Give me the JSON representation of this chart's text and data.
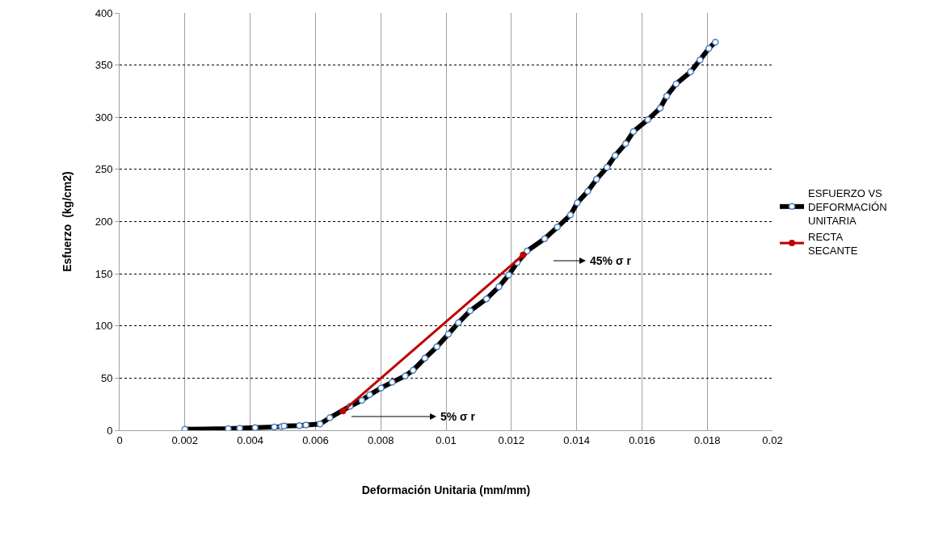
{
  "chart_data": {
    "type": "line",
    "xlabel": "Deformación Unitaria (mm/mm)",
    "ylabel": "Esfuerzo  (kg/cm2)",
    "xlim": [
      0,
      0.02
    ],
    "xticks": [
      0,
      0.002,
      0.004,
      0.006,
      0.008,
      0.01,
      0.012,
      0.014,
      0.016,
      0.018,
      0.02
    ],
    "ylim": [
      0,
      400
    ],
    "yticks": [
      0,
      50,
      100,
      150,
      200,
      250,
      300,
      350,
      400
    ],
    "grid": true,
    "legend": "right",
    "marker": "circle",
    "line_style": "solid",
    "series": [
      {
        "name": "ESFUERZO VS DEFORMACIÓN UNITARIA",
        "color": "#000000",
        "x": [
          0.002,
          0.00333,
          0.00368,
          0.00415,
          0.00474,
          0.00496,
          0.00504,
          0.00551,
          0.00571,
          0.00614,
          0.00644,
          0.00706,
          0.00742,
          0.00766,
          0.00801,
          0.00835,
          0.00875,
          0.00899,
          0.00935,
          0.00972,
          0.01007,
          0.01038,
          0.01074,
          0.01124,
          0.01162,
          0.01192,
          0.01218,
          0.01248,
          0.01302,
          0.01341,
          0.01381,
          0.01402,
          0.01434,
          0.01461,
          0.01493,
          0.01518,
          0.0155,
          0.01574,
          0.01618,
          0.01656,
          0.01676,
          0.01705,
          0.01749,
          0.01778,
          0.01805,
          0.01825
        ],
        "values": [
          1,
          1.5,
          2,
          2.5,
          3,
          3.5,
          4,
          4.5,
          5,
          6,
          12,
          23,
          28.6,
          34,
          40.5,
          46,
          52,
          57.5,
          69,
          80,
          92,
          103,
          114.5,
          126,
          137.5,
          149,
          160.7,
          171.8,
          183.6,
          194.7,
          206.3,
          218,
          229,
          240.6,
          252,
          263.3,
          274.7,
          286.3,
          297.6,
          308.7,
          320.3,
          332,
          343.5,
          355,
          366,
          372
        ]
      },
      {
        "name": "RECTA SECANTE",
        "color": "#c00000",
        "x": [
          0.00684,
          0.01236
        ],
        "values": [
          18.3,
          168
        ]
      }
    ],
    "annotations": [
      "5% σ r",
      "45% σ r"
    ]
  }
}
